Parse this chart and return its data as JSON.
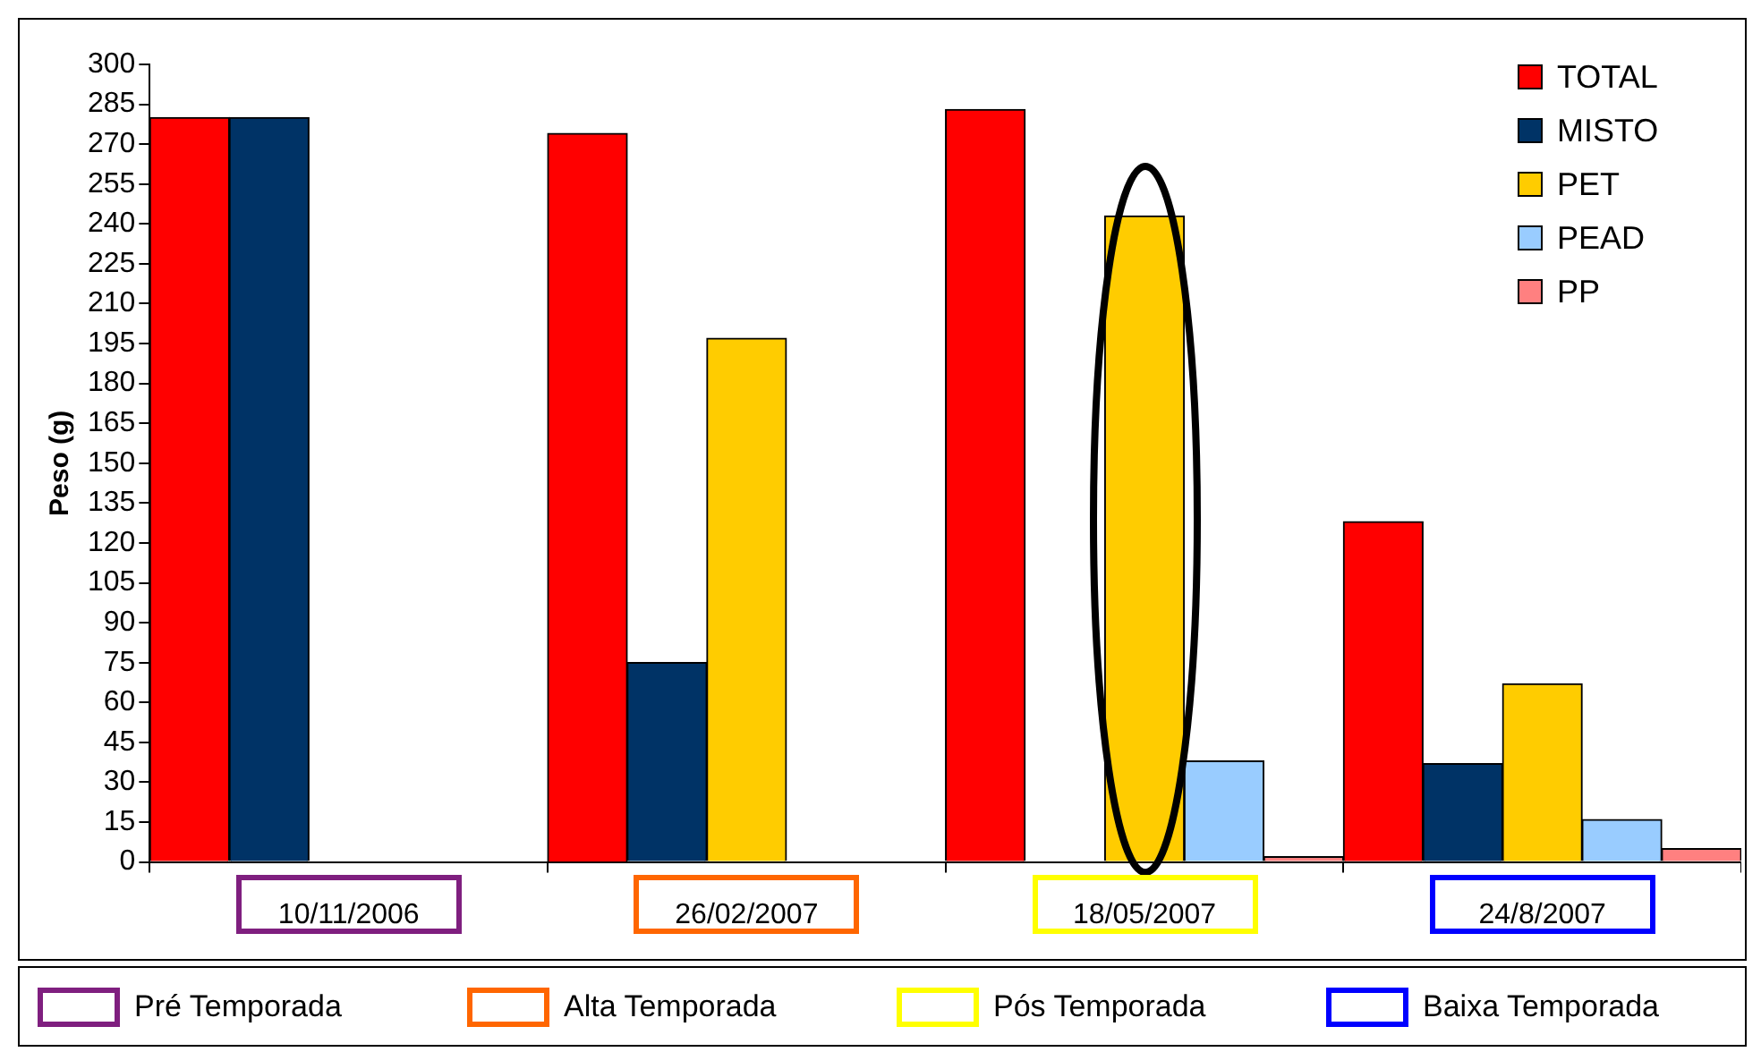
{
  "chart_data": {
    "type": "bar",
    "ylabel": "Peso (g)",
    "categories": [
      "10/11/2006",
      "26/02/2007",
      "18/05/2007",
      "24/8/2007"
    ],
    "series": [
      {
        "name": "TOTAL",
        "color": "#ff0000",
        "values": [
          280,
          274,
          283,
          128
        ]
      },
      {
        "name": "MISTO",
        "color": "#003366",
        "values": [
          280,
          75,
          null,
          37
        ]
      },
      {
        "name": "PET",
        "color": "#ffcc00",
        "values": [
          null,
          197,
          243,
          67
        ]
      },
      {
        "name": "PEAD",
        "color": "#99ccff",
        "values": [
          null,
          null,
          38,
          16
        ]
      },
      {
        "name": "PP",
        "color": "#ff8080",
        "values": [
          null,
          null,
          2,
          5
        ]
      }
    ],
    "ylim": [
      0,
      300
    ],
    "yticks": [
      0,
      15,
      30,
      45,
      60,
      75,
      90,
      105,
      120,
      135,
      150,
      165,
      180,
      195,
      210,
      225,
      240,
      255,
      270,
      285,
      300
    ],
    "grid": false,
    "legend": "top right",
    "annotations": [
      "Pré Temporada",
      "Alta Temporada",
      "Pós Temporada",
      "Baixa Temporada"
    ]
  }
}
